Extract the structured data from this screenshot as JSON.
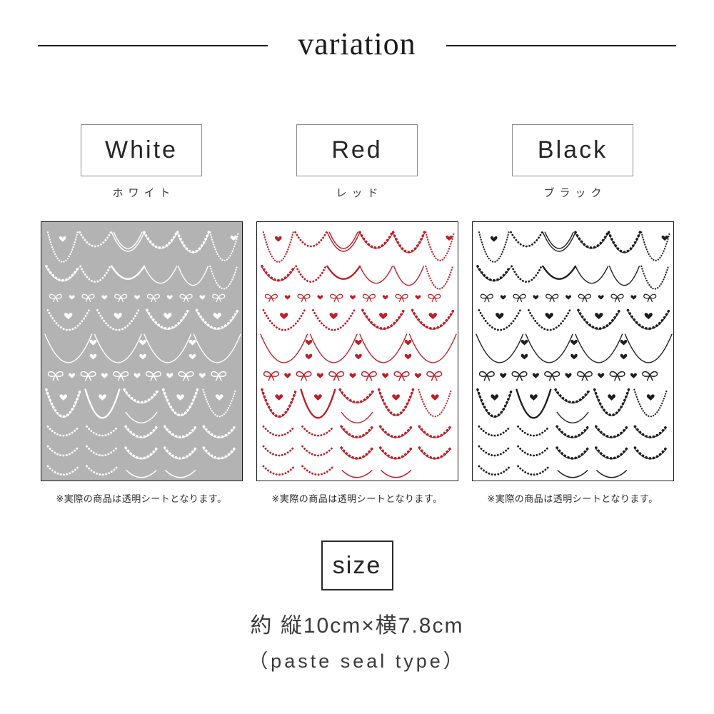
{
  "header": {
    "title": "variation"
  },
  "panels": [
    {
      "label": "White",
      "label_ja": "ホワイト",
      "ink": "#ffffff",
      "bg": "#b3b3b3",
      "caption": "※実際の商品は透明シートとなります。"
    },
    {
      "label": "Red",
      "label_ja": "レッド",
      "ink": "#bd1f27",
      "bg": "#ffffff",
      "caption": "※実際の商品は透明シートとなります。"
    },
    {
      "label": "Black",
      "label_ja": "ブラック",
      "ink": "#1d1d1d",
      "bg": "#ffffff",
      "caption": "※実際の商品は透明シートとなります。"
    }
  ],
  "size": {
    "title": "size",
    "dimensions": "約 縦10cm×横7.8cm",
    "type": "（paste seal type）"
  },
  "artwork": {
    "motifs": [
      "necklace-arc",
      "heart",
      "ribbon-bow"
    ]
  },
  "colors": {
    "title_text": "#1c1c1c",
    "panel_border": "#1b1b1b",
    "label_box_border": "#8c8c8c",
    "body_text": "#2b2b2b"
  }
}
